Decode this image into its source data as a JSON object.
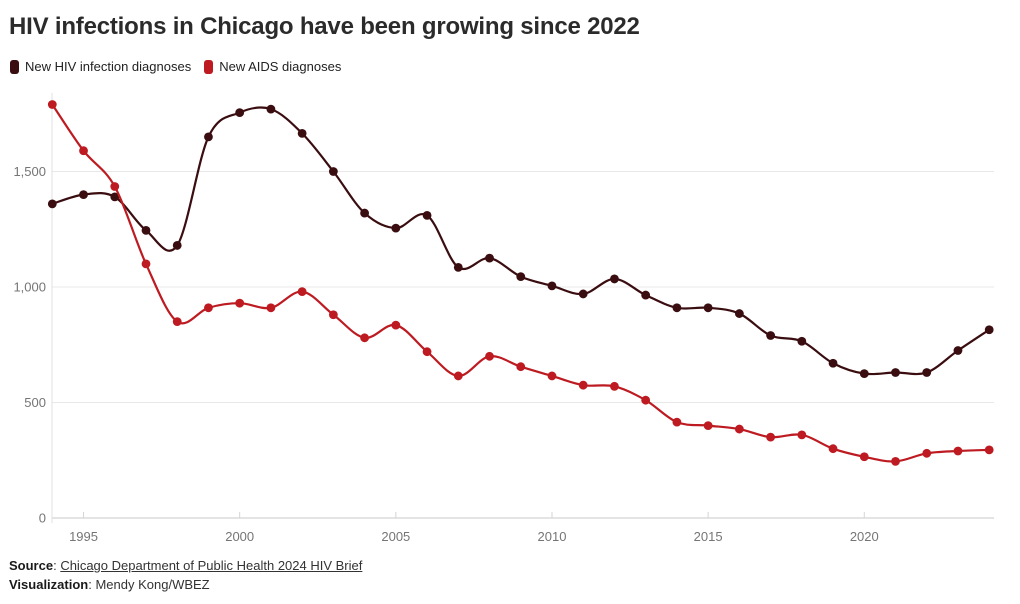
{
  "header": {
    "title": "HIV infections in Chicago have been growing since 2022"
  },
  "legend": {
    "items": [
      {
        "label": "New HIV infection diagnoses",
        "color": "#3a0d10"
      },
      {
        "label": "New AIDS diagnoses",
        "color": "#bd1b21"
      }
    ]
  },
  "chart_data": {
    "type": "line",
    "title": "HIV infections in Chicago have been growing since 2022",
    "xlabel": "",
    "ylabel": "",
    "x": [
      1994,
      1995,
      1996,
      1997,
      1998,
      1999,
      2000,
      2001,
      2002,
      2003,
      2004,
      2005,
      2006,
      2007,
      2008,
      2009,
      2010,
      2011,
      2012,
      2013,
      2014,
      2015,
      2016,
      2017,
      2018,
      2019,
      2020,
      2021,
      2022,
      2023,
      2024
    ],
    "series": [
      {
        "name": "New HIV infection diagnoses",
        "color": "#3a0d10",
        "values": [
          1360,
          1400,
          1390,
          1245,
          1180,
          1650,
          1755,
          1770,
          1665,
          1500,
          1320,
          1255,
          1310,
          1085,
          1125,
          1045,
          1005,
          970,
          1035,
          965,
          910,
          910,
          885,
          790,
          765,
          670,
          625,
          630,
          630,
          725,
          815
        ]
      },
      {
        "name": "New AIDS diagnoses",
        "color": "#bd1b21",
        "values": [
          1790,
          1590,
          1435,
          1100,
          850,
          910,
          930,
          910,
          980,
          880,
          780,
          835,
          720,
          615,
          700,
          655,
          615,
          575,
          570,
          510,
          415,
          400,
          385,
          350,
          360,
          300,
          265,
          245,
          280,
          290,
          295
        ]
      }
    ],
    "ylim": [
      0,
      1875
    ],
    "yticks": [
      0,
      500,
      1000,
      1500
    ],
    "ytick_labels": [
      "0",
      "500",
      "1,000",
      "1,500"
    ],
    "xticks": [
      1995,
      2000,
      2005,
      2010,
      2015,
      2020
    ],
    "grid": true,
    "legend_position": "top-left"
  },
  "footer": {
    "source_label": "Source",
    "source_separator": ": ",
    "source_link": "Chicago Department of Public Health 2024 HIV Brief",
    "visualization_label": "Visualization",
    "visualization_separator": ": ",
    "visualization_value": "Mendy Kong/WBEZ"
  }
}
